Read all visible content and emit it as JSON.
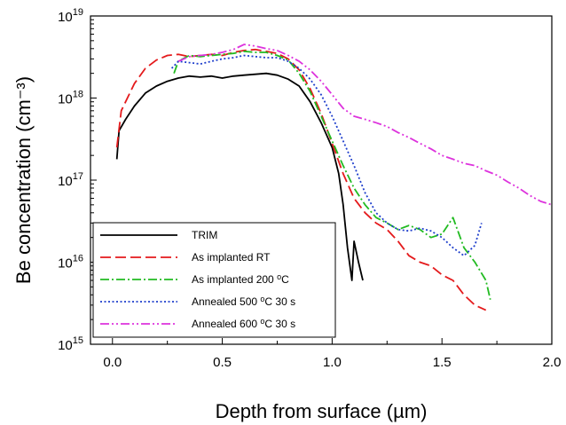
{
  "chart_data": {
    "type": "line",
    "xlabel": "Depth from surface (µm)",
    "ylabel": "Be concentration (cm⁻³)",
    "xlim": [
      -0.1,
      2.0
    ],
    "ylim": [
      1000000000000000.0,
      1e+19
    ],
    "yscale": "log",
    "x_ticks": [
      "0.0",
      "0.5",
      "1.0",
      "1.5",
      "2.0"
    ],
    "y_ticks": [
      {
        "base": "10",
        "exp": "15",
        "value": 1000000000000000.0
      },
      {
        "base": "10",
        "exp": "16",
        "value": 1e+16
      },
      {
        "base": "10",
        "exp": "17",
        "value": 1e+17
      },
      {
        "base": "10",
        "exp": "18",
        "value": 1e+18
      },
      {
        "base": "10",
        "exp": "19",
        "value": 1e+19
      }
    ],
    "grid": false,
    "legend_position": "bottom-left",
    "series": [
      {
        "name": "TRIM",
        "color": "#000000",
        "dash": "solid",
        "points": [
          [
            0.02,
            1.8e+17
          ],
          [
            0.03,
            4e+17
          ],
          [
            0.06,
            5.5e+17
          ],
          [
            0.1,
            8e+17
          ],
          [
            0.15,
            1.15e+18
          ],
          [
            0.2,
            1.4e+18
          ],
          [
            0.25,
            1.6e+18
          ],
          [
            0.3,
            1.75e+18
          ],
          [
            0.35,
            1.85e+18
          ],
          [
            0.4,
            1.8e+18
          ],
          [
            0.45,
            1.85e+18
          ],
          [
            0.5,
            1.75e+18
          ],
          [
            0.55,
            1.85e+18
          ],
          [
            0.6,
            1.9e+18
          ],
          [
            0.65,
            1.95e+18
          ],
          [
            0.7,
            2e+18
          ],
          [
            0.75,
            1.9e+18
          ],
          [
            0.8,
            1.7e+18
          ],
          [
            0.85,
            1.4e+18
          ],
          [
            0.9,
            9e+17
          ],
          [
            0.95,
            5e+17
          ],
          [
            1.0,
            2.5e+17
          ],
          [
            1.03,
            1.2e+17
          ],
          [
            1.05,
            5e+16
          ],
          [
            1.07,
            1.5e+16
          ],
          [
            1.09,
            6000000000000000.0
          ],
          [
            1.1,
            1.8e+16
          ],
          [
            1.12,
            1e+16
          ],
          [
            1.14,
            6000000000000000.0
          ]
        ]
      },
      {
        "name": "As implanted RT",
        "color": "#e41a1c",
        "dash": "long-dash",
        "points": [
          [
            0.02,
            2.5e+17
          ],
          [
            0.04,
            7e+17
          ],
          [
            0.1,
            1.5e+18
          ],
          [
            0.15,
            2.3e+18
          ],
          [
            0.2,
            2.9e+18
          ],
          [
            0.25,
            3.3e+18
          ],
          [
            0.3,
            3.4e+18
          ],
          [
            0.35,
            3.2e+18
          ],
          [
            0.4,
            3.3e+18
          ],
          [
            0.45,
            3.4e+18
          ],
          [
            0.5,
            3.3e+18
          ],
          [
            0.55,
            3.6e+18
          ],
          [
            0.6,
            3.8e+18
          ],
          [
            0.65,
            3.9e+18
          ],
          [
            0.7,
            3.7e+18
          ],
          [
            0.75,
            3.5e+18
          ],
          [
            0.8,
            3e+18
          ],
          [
            0.85,
            2.2e+18
          ],
          [
            0.9,
            1.3e+18
          ],
          [
            0.95,
            6.5e+17
          ],
          [
            1.0,
            2.8e+17
          ],
          [
            1.05,
            1.2e+17
          ],
          [
            1.1,
            6e+16
          ],
          [
            1.15,
            4e+16
          ],
          [
            1.2,
            3e+16
          ],
          [
            1.25,
            2.5e+16
          ],
          [
            1.3,
            1.8e+16
          ],
          [
            1.35,
            1.2e+16
          ],
          [
            1.4,
            1e+16
          ],
          [
            1.45,
            9000000000000000.0
          ],
          [
            1.5,
            7000000000000000.0
          ],
          [
            1.55,
            6000000000000000.0
          ],
          [
            1.6,
            4000000000000000.0
          ],
          [
            1.65,
            3000000000000000.0
          ],
          [
            1.7,
            2600000000000000.0
          ]
        ]
      },
      {
        "name": "As implanted 200 °C",
        "color": "#22bb22",
        "dash": "dash-dot",
        "points": [
          [
            0.28,
            2e+18
          ],
          [
            0.3,
            2.8e+18
          ],
          [
            0.35,
            3.3e+18
          ],
          [
            0.4,
            3.2e+18
          ],
          [
            0.45,
            3.3e+18
          ],
          [
            0.5,
            3.4e+18
          ],
          [
            0.55,
            3.5e+18
          ],
          [
            0.6,
            3.7e+18
          ],
          [
            0.65,
            3.6e+18
          ],
          [
            0.7,
            3.6e+18
          ],
          [
            0.75,
            3.3e+18
          ],
          [
            0.8,
            2.9e+18
          ],
          [
            0.85,
            2e+18
          ],
          [
            0.9,
            1.2e+18
          ],
          [
            0.95,
            6e+17
          ],
          [
            1.0,
            3e+17
          ],
          [
            1.05,
            1.5e+17
          ],
          [
            1.1,
            8e+16
          ],
          [
            1.15,
            5e+16
          ],
          [
            1.2,
            3.5e+16
          ],
          [
            1.25,
            3e+16
          ],
          [
            1.3,
            2.5e+16
          ],
          [
            1.35,
            2.8e+16
          ],
          [
            1.4,
            2.5e+16
          ],
          [
            1.45,
            2e+16
          ],
          [
            1.5,
            2.2e+16
          ],
          [
            1.55,
            3.5e+16
          ],
          [
            1.6,
            1.5e+16
          ],
          [
            1.65,
            1e+16
          ],
          [
            1.7,
            6000000000000000.0
          ],
          [
            1.72,
            3500000000000000.0
          ]
        ]
      },
      {
        "name": "Annealed 500 °C 30 s",
        "color": "#1f3fcc",
        "dash": "dotted",
        "points": [
          [
            0.27,
            2.3e+18
          ],
          [
            0.3,
            2.8e+18
          ],
          [
            0.35,
            2.7e+18
          ],
          [
            0.4,
            2.6e+18
          ],
          [
            0.45,
            2.8e+18
          ],
          [
            0.5,
            3e+18
          ],
          [
            0.55,
            3.1e+18
          ],
          [
            0.6,
            3.3e+18
          ],
          [
            0.65,
            3.2e+18
          ],
          [
            0.7,
            3.1e+18
          ],
          [
            0.75,
            3.1e+18
          ],
          [
            0.8,
            2.8e+18
          ],
          [
            0.85,
            2.3e+18
          ],
          [
            0.9,
            1.7e+18
          ],
          [
            0.95,
            1.1e+18
          ],
          [
            1.0,
            6e+17
          ],
          [
            1.05,
            3e+17
          ],
          [
            1.1,
            1.5e+17
          ],
          [
            1.15,
            7e+16
          ],
          [
            1.2,
            4e+16
          ],
          [
            1.25,
            3e+16
          ],
          [
            1.3,
            2.5e+16
          ],
          [
            1.35,
            2.4e+16
          ],
          [
            1.4,
            2.6e+16
          ],
          [
            1.45,
            2.4e+16
          ],
          [
            1.5,
            2e+16
          ],
          [
            1.55,
            1.5e+16
          ],
          [
            1.6,
            1.2e+16
          ],
          [
            1.65,
            1.6e+16
          ],
          [
            1.68,
            3e+16
          ]
        ]
      },
      {
        "name": "Annealed 600 °C 30 s",
        "color": "#dd33dd",
        "dash": "dash-dot-dot",
        "points": [
          [
            0.3,
            2.8e+18
          ],
          [
            0.35,
            3.2e+18
          ],
          [
            0.4,
            3.3e+18
          ],
          [
            0.45,
            3.4e+18
          ],
          [
            0.5,
            3.6e+18
          ],
          [
            0.55,
            3.9e+18
          ],
          [
            0.6,
            4.5e+18
          ],
          [
            0.65,
            4.3e+18
          ],
          [
            0.7,
            4e+18
          ],
          [
            0.75,
            3.8e+18
          ],
          [
            0.8,
            3.3e+18
          ],
          [
            0.85,
            2.8e+18
          ],
          [
            0.9,
            2.2e+18
          ],
          [
            0.95,
            1.6e+18
          ],
          [
            1.0,
            1.1e+18
          ],
          [
            1.05,
            7.5e+17
          ],
          [
            1.1,
            6e+17
          ],
          [
            1.15,
            5.5e+17
          ],
          [
            1.2,
            5e+17
          ],
          [
            1.25,
            4.5e+17
          ],
          [
            1.3,
            3.8e+17
          ],
          [
            1.35,
            3.3e+17
          ],
          [
            1.4,
            2.8e+17
          ],
          [
            1.45,
            2.4e+17
          ],
          [
            1.5,
            2e+17
          ],
          [
            1.55,
            1.8e+17
          ],
          [
            1.6,
            1.6e+17
          ],
          [
            1.65,
            1.5e+17
          ],
          [
            1.7,
            1.3e+17
          ],
          [
            1.75,
            1.15e+17
          ],
          [
            1.8,
            9.5e+16
          ],
          [
            1.85,
            8e+16
          ],
          [
            1.9,
            6.5e+16
          ],
          [
            1.95,
            5.5e+16
          ],
          [
            2.0,
            5e+16
          ]
        ]
      }
    ]
  }
}
